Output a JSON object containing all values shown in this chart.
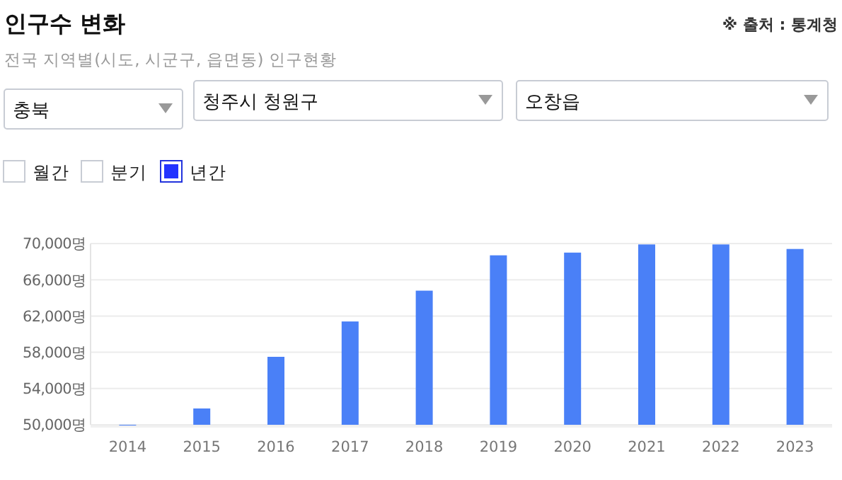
{
  "chart_data": {
    "type": "bar",
    "title": "인구수 변화",
    "subtitle": "전국 지역별(시도, 시군구, 읍면동) 인구현황",
    "annotations": [
      "※ 출처 : 통계청",
      "충북",
      "청주시 청원구",
      "오창읍",
      "월간",
      "분기",
      "년간"
    ],
    "categories": [
      "2014",
      "2015",
      "2016",
      "2017",
      "2018",
      "2019",
      "2020",
      "2021",
      "2022",
      "2023"
    ],
    "values": [
      50000,
      51800,
      57500,
      61400,
      64800,
      68700,
      69000,
      69900,
      69900,
      69400
    ],
    "color": "#4a80f7",
    "ylim": [
      50000,
      70000
    ],
    "yticks": [
      {
        "value": 50000,
        "label": "50,000명"
      },
      {
        "value": 54000,
        "label": "54,000명"
      },
      {
        "value": 58000,
        "label": "58,000명"
      },
      {
        "value": 62000,
        "label": "62,000명"
      },
      {
        "value": 66000,
        "label": "66,000명"
      },
      {
        "value": 70000,
        "label": "70,000명"
      }
    ],
    "grid": "y"
  }
}
